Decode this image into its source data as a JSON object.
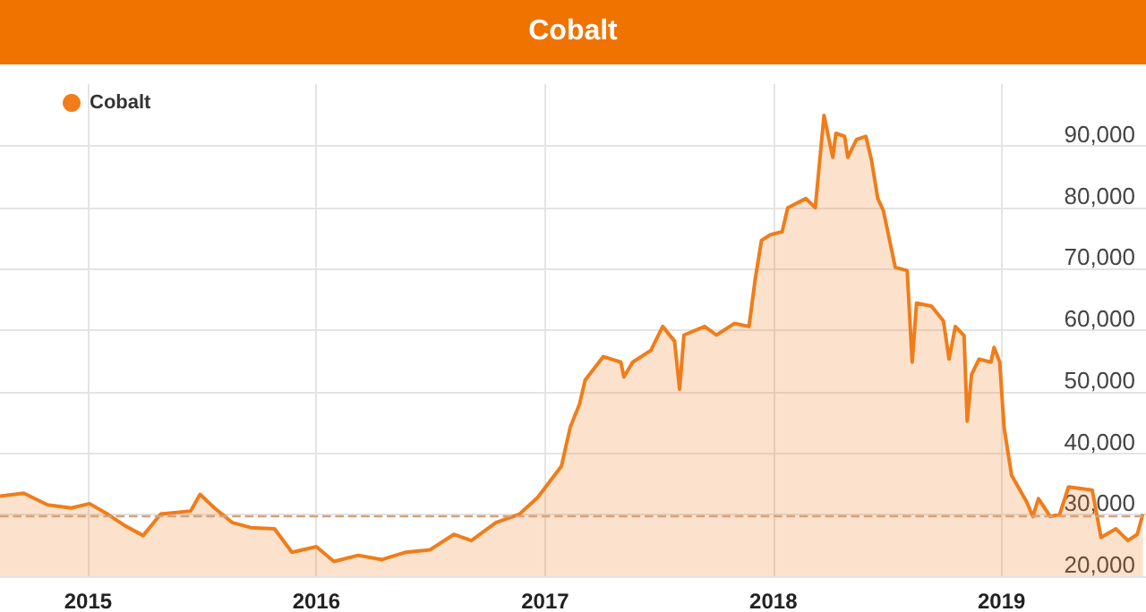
{
  "chart_data": {
    "type": "area",
    "title": "Cobalt",
    "x": [
      "2014-08-13",
      "2014-09-20",
      "2014-10-28",
      "2014-12-05",
      "2015-01-03",
      "2015-02-01",
      "2015-03-01",
      "2015-03-30",
      "2015-04-27",
      "2015-06-14",
      "2015-06-29",
      "2015-07-22",
      "2015-08-20",
      "2015-09-18",
      "2015-10-26",
      "2015-11-23",
      "2016-01-01",
      "2016-01-29",
      "2016-03-08",
      "2016-04-15",
      "2016-05-23",
      "2016-07-01",
      "2016-08-08",
      "2016-09-05",
      "2016-10-14",
      "2016-11-21",
      "2016-12-20",
      "2017-01-27",
      "2017-02-10",
      "2017-02-25",
      "2017-03-06",
      "2017-04-04",
      "2017-05-02",
      "2017-05-07",
      "2017-05-21",
      "2017-06-19",
      "2017-07-08",
      "2017-07-27",
      "2017-08-04",
      "2017-08-11",
      "2017-09-13",
      "2017-10-02",
      "2017-10-31",
      "2017-11-23",
      "2017-12-03",
      "2017-12-13",
      "2017-12-27",
      "2018-01-15",
      "2018-01-24",
      "2018-02-22",
      "2018-03-09",
      "2018-03-13",
      "2018-03-23",
      "2018-04-06",
      "2018-04-11",
      "2018-04-25",
      "2018-04-30",
      "2018-05-14",
      "2018-05-29",
      "2018-06-07",
      "2018-06-17",
      "2018-06-26",
      "2018-07-15",
      "2018-08-03",
      "2018-08-11",
      "2018-08-18",
      "2018-09-11",
      "2018-09-30",
      "2018-10-09",
      "2018-10-19",
      "2018-11-02",
      "2018-11-07",
      "2018-11-14",
      "2018-11-26",
      "2018-12-15",
      "2018-12-20",
      "2018-12-29",
      "2019-01-05",
      "2019-01-17",
      "2019-02-10",
      "2019-02-20",
      "2019-03-01",
      "2019-03-20",
      "2019-04-04",
      "2019-04-18",
      "2019-05-26",
      "2019-06-09",
      "2019-07-03",
      "2019-07-22",
      "2019-08-06",
      "2019-08-15"
    ],
    "series": [
      {
        "name": "Cobalt",
        "color": "#f07d1a",
        "values": [
          33000,
          33500,
          31600,
          31100,
          31800,
          30100,
          28200,
          26600,
          30100,
          30600,
          33300,
          31100,
          28700,
          27900,
          27700,
          23900,
          24800,
          22400,
          23400,
          22700,
          23900,
          24300,
          26800,
          25800,
          28700,
          30100,
          32800,
          37900,
          44200,
          48000,
          51900,
          55700,
          54800,
          52400,
          54800,
          56700,
          60600,
          58200,
          50400,
          59200,
          60600,
          59200,
          61100,
          60600,
          68300,
          74600,
          75500,
          76000,
          79900,
          81400,
          79900,
          84200,
          94900,
          88100,
          92000,
          91500,
          88100,
          91000,
          91500,
          87600,
          81400,
          79400,
          70200,
          69700,
          54800,
          64400,
          63900,
          61500,
          55300,
          60600,
          59100,
          45200,
          52800,
          55300,
          54800,
          57200,
          54800,
          44200,
          36400,
          32100,
          29700,
          32600,
          29700,
          30100,
          34500,
          34000,
          26300,
          27700,
          25800,
          26800,
          30100
        ]
      }
    ],
    "xlim": [
      "2014-08-13",
      "2019-08-20"
    ],
    "xticks": [
      {
        "value": "2015-01-01",
        "label": "2015"
      },
      {
        "value": "2016-01-01",
        "label": "2016"
      },
      {
        "value": "2017-01-01",
        "label": "2017"
      },
      {
        "value": "2018-01-01",
        "label": "2018"
      },
      {
        "value": "2019-01-01",
        "label": "2019"
      }
    ],
    "ylim": [
      20000,
      100000
    ],
    "yticks": [
      {
        "value": 20000,
        "label": "20,000"
      },
      {
        "value": 30000,
        "label": "30,000"
      },
      {
        "value": 40000,
        "label": "40,000"
      },
      {
        "value": 50000,
        "label": "50,000"
      },
      {
        "value": 60000,
        "label": "60,000"
      },
      {
        "value": 70000,
        "label": "70,000"
      },
      {
        "value": 80000,
        "label": "80,000"
      },
      {
        "value": 90000,
        "label": "90,000"
      }
    ],
    "ref_lines": [
      {
        "axis": "y",
        "value": 29700,
        "color": "#d9a07a",
        "line_style": "dashed"
      }
    ],
    "grid": true,
    "legend": "top left",
    "marker": "none",
    "line_style": "solid"
  }
}
